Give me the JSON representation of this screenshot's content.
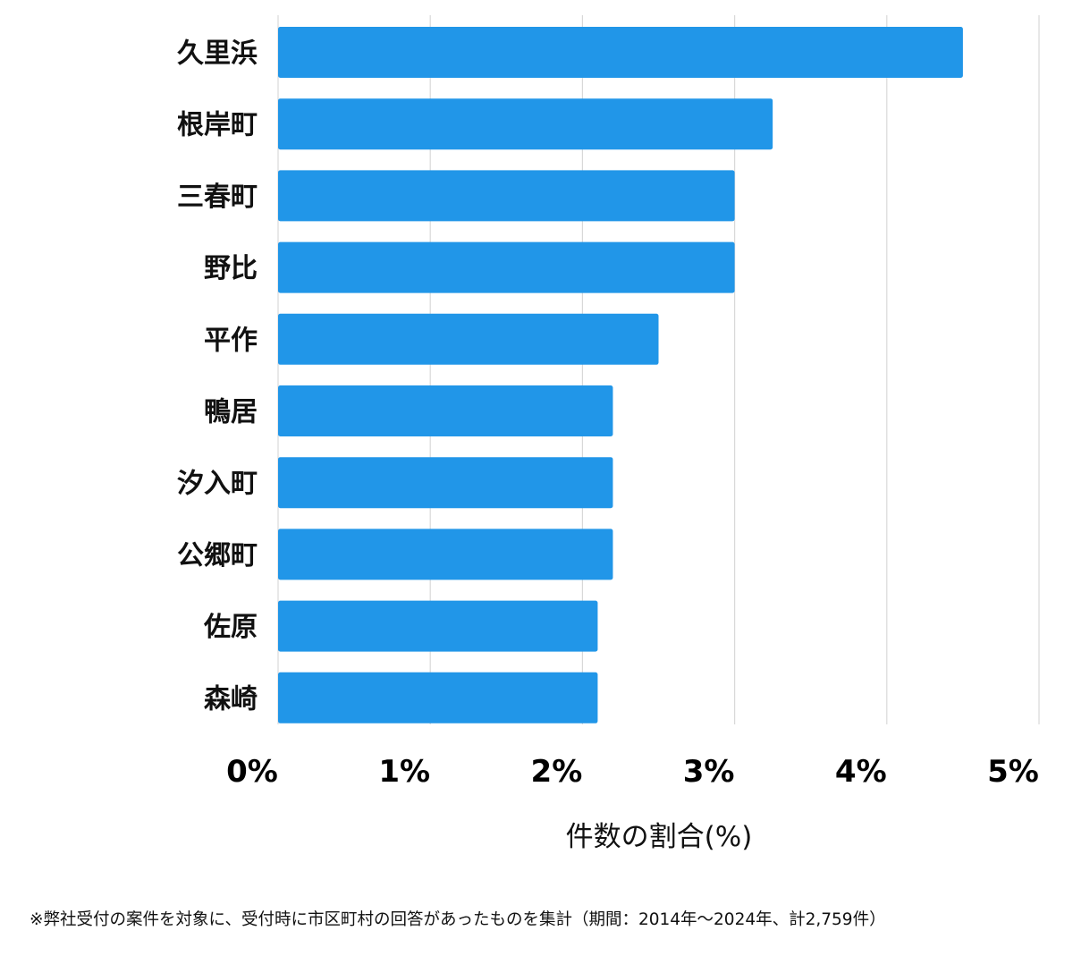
{
  "chart_data": {
    "type": "bar",
    "orientation": "horizontal",
    "categories": [
      "久里浜",
      "根岸町",
      "三春町",
      "野比",
      "平作",
      "鴨居",
      "汐入町",
      "公郷町",
      "佐原",
      "森崎"
    ],
    "values": [
      4.5,
      3.25,
      3.0,
      3.0,
      2.5,
      2.2,
      2.2,
      2.2,
      2.1,
      2.1
    ],
    "xlabel": "件数の割合(%)",
    "xlim": [
      0,
      5
    ],
    "xticks": [
      0,
      1,
      2,
      3,
      4,
      5
    ],
    "xtick_labels": [
      "0%",
      "1%",
      "2%",
      "3%",
      "4%",
      "5%"
    ],
    "grid": true,
    "bar_color": "#2196E8",
    "grid_color": "#d8d8d8"
  },
  "footnote": "※弊社受付の案件を対象に、受付時に市区町村の回答があったものを集計（期間：2014年～2024年、計2,759件）"
}
